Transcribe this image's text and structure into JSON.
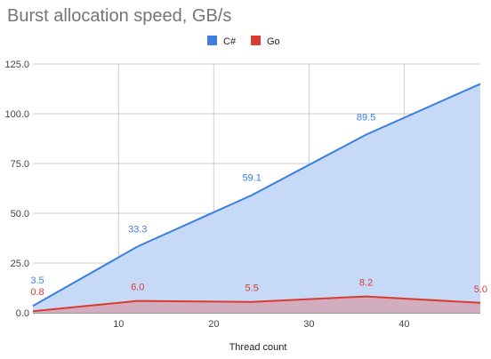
{
  "chart_data": {
    "type": "area",
    "title": "Burst allocation speed, GB/s",
    "xlabel": "Thread count",
    "ylabel": "",
    "xlim": [
      1,
      48
    ],
    "ylim": [
      0,
      125
    ],
    "x_ticks": [
      "10",
      "20",
      "30",
      "40"
    ],
    "y_ticks": [
      "0.0",
      "25.0",
      "50.0",
      "75.0",
      "100.0",
      "125.0"
    ],
    "grid": true,
    "legend_position": "top",
    "x": [
      1,
      12,
      24,
      36,
      48
    ],
    "series": [
      {
        "name": "C#",
        "color": "#3c7ee0",
        "fill": "#c6d9f7",
        "values": [
          3.5,
          33.3,
          59.1,
          89.5,
          115.0
        ],
        "labels": [
          "3.5",
          "33.3",
          "59.1",
          "89.5",
          ""
        ]
      },
      {
        "name": "Go",
        "color": "#d93b2e",
        "fill": "#d3a4b6",
        "values": [
          0.8,
          6.0,
          5.5,
          8.2,
          5.0
        ],
        "labels": [
          "0.8",
          "6.0",
          "5.5",
          "8.2",
          "5.0"
        ]
      }
    ]
  }
}
